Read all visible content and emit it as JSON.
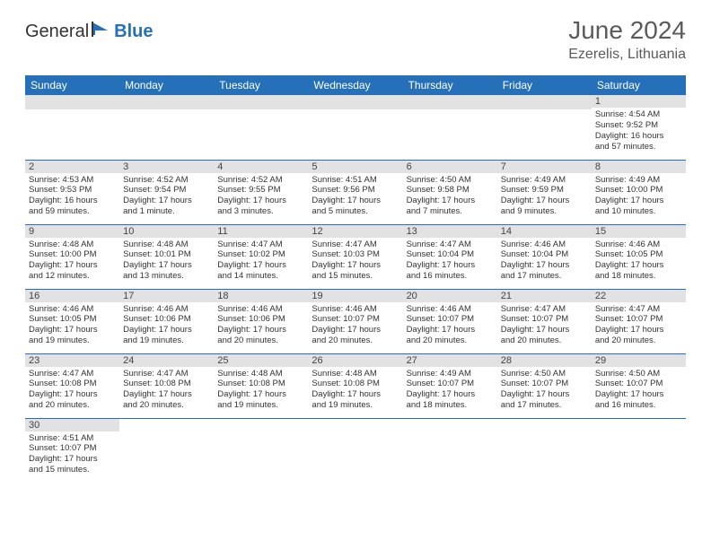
{
  "logo": {
    "part1": "General",
    "part2": "Blue"
  },
  "title": "June 2024",
  "location": "Ezerelis, Lithuania",
  "headers": [
    "Sunday",
    "Monday",
    "Tuesday",
    "Wednesday",
    "Thursday",
    "Friday",
    "Saturday"
  ],
  "colors": {
    "header_bg": "#2570b8",
    "header_fg": "#ffffff",
    "daynum_bg": "#e2e2e2",
    "border": "#2570b8"
  },
  "weeks": [
    [
      null,
      null,
      null,
      null,
      null,
      null,
      {
        "n": "1",
        "sr": "Sunrise: 4:54 AM",
        "ss": "Sunset: 9:52 PM",
        "d1": "Daylight: 16 hours",
        "d2": "and 57 minutes."
      }
    ],
    [
      {
        "n": "2",
        "sr": "Sunrise: 4:53 AM",
        "ss": "Sunset: 9:53 PM",
        "d1": "Daylight: 16 hours",
        "d2": "and 59 minutes."
      },
      {
        "n": "3",
        "sr": "Sunrise: 4:52 AM",
        "ss": "Sunset: 9:54 PM",
        "d1": "Daylight: 17 hours",
        "d2": "and 1 minute."
      },
      {
        "n": "4",
        "sr": "Sunrise: 4:52 AM",
        "ss": "Sunset: 9:55 PM",
        "d1": "Daylight: 17 hours",
        "d2": "and 3 minutes."
      },
      {
        "n": "5",
        "sr": "Sunrise: 4:51 AM",
        "ss": "Sunset: 9:56 PM",
        "d1": "Daylight: 17 hours",
        "d2": "and 5 minutes."
      },
      {
        "n": "6",
        "sr": "Sunrise: 4:50 AM",
        "ss": "Sunset: 9:58 PM",
        "d1": "Daylight: 17 hours",
        "d2": "and 7 minutes."
      },
      {
        "n": "7",
        "sr": "Sunrise: 4:49 AM",
        "ss": "Sunset: 9:59 PM",
        "d1": "Daylight: 17 hours",
        "d2": "and 9 minutes."
      },
      {
        "n": "8",
        "sr": "Sunrise: 4:49 AM",
        "ss": "Sunset: 10:00 PM",
        "d1": "Daylight: 17 hours",
        "d2": "and 10 minutes."
      }
    ],
    [
      {
        "n": "9",
        "sr": "Sunrise: 4:48 AM",
        "ss": "Sunset: 10:00 PM",
        "d1": "Daylight: 17 hours",
        "d2": "and 12 minutes."
      },
      {
        "n": "10",
        "sr": "Sunrise: 4:48 AM",
        "ss": "Sunset: 10:01 PM",
        "d1": "Daylight: 17 hours",
        "d2": "and 13 minutes."
      },
      {
        "n": "11",
        "sr": "Sunrise: 4:47 AM",
        "ss": "Sunset: 10:02 PM",
        "d1": "Daylight: 17 hours",
        "d2": "and 14 minutes."
      },
      {
        "n": "12",
        "sr": "Sunrise: 4:47 AM",
        "ss": "Sunset: 10:03 PM",
        "d1": "Daylight: 17 hours",
        "d2": "and 15 minutes."
      },
      {
        "n": "13",
        "sr": "Sunrise: 4:47 AM",
        "ss": "Sunset: 10:04 PM",
        "d1": "Daylight: 17 hours",
        "d2": "and 16 minutes."
      },
      {
        "n": "14",
        "sr": "Sunrise: 4:46 AM",
        "ss": "Sunset: 10:04 PM",
        "d1": "Daylight: 17 hours",
        "d2": "and 17 minutes."
      },
      {
        "n": "15",
        "sr": "Sunrise: 4:46 AM",
        "ss": "Sunset: 10:05 PM",
        "d1": "Daylight: 17 hours",
        "d2": "and 18 minutes."
      }
    ],
    [
      {
        "n": "16",
        "sr": "Sunrise: 4:46 AM",
        "ss": "Sunset: 10:05 PM",
        "d1": "Daylight: 17 hours",
        "d2": "and 19 minutes."
      },
      {
        "n": "17",
        "sr": "Sunrise: 4:46 AM",
        "ss": "Sunset: 10:06 PM",
        "d1": "Daylight: 17 hours",
        "d2": "and 19 minutes."
      },
      {
        "n": "18",
        "sr": "Sunrise: 4:46 AM",
        "ss": "Sunset: 10:06 PM",
        "d1": "Daylight: 17 hours",
        "d2": "and 20 minutes."
      },
      {
        "n": "19",
        "sr": "Sunrise: 4:46 AM",
        "ss": "Sunset: 10:07 PM",
        "d1": "Daylight: 17 hours",
        "d2": "and 20 minutes."
      },
      {
        "n": "20",
        "sr": "Sunrise: 4:46 AM",
        "ss": "Sunset: 10:07 PM",
        "d1": "Daylight: 17 hours",
        "d2": "and 20 minutes."
      },
      {
        "n": "21",
        "sr": "Sunrise: 4:47 AM",
        "ss": "Sunset: 10:07 PM",
        "d1": "Daylight: 17 hours",
        "d2": "and 20 minutes."
      },
      {
        "n": "22",
        "sr": "Sunrise: 4:47 AM",
        "ss": "Sunset: 10:07 PM",
        "d1": "Daylight: 17 hours",
        "d2": "and 20 minutes."
      }
    ],
    [
      {
        "n": "23",
        "sr": "Sunrise: 4:47 AM",
        "ss": "Sunset: 10:08 PM",
        "d1": "Daylight: 17 hours",
        "d2": "and 20 minutes."
      },
      {
        "n": "24",
        "sr": "Sunrise: 4:47 AM",
        "ss": "Sunset: 10:08 PM",
        "d1": "Daylight: 17 hours",
        "d2": "and 20 minutes."
      },
      {
        "n": "25",
        "sr": "Sunrise: 4:48 AM",
        "ss": "Sunset: 10:08 PM",
        "d1": "Daylight: 17 hours",
        "d2": "and 19 minutes."
      },
      {
        "n": "26",
        "sr": "Sunrise: 4:48 AM",
        "ss": "Sunset: 10:08 PM",
        "d1": "Daylight: 17 hours",
        "d2": "and 19 minutes."
      },
      {
        "n": "27",
        "sr": "Sunrise: 4:49 AM",
        "ss": "Sunset: 10:07 PM",
        "d1": "Daylight: 17 hours",
        "d2": "and 18 minutes."
      },
      {
        "n": "28",
        "sr": "Sunrise: 4:50 AM",
        "ss": "Sunset: 10:07 PM",
        "d1": "Daylight: 17 hours",
        "d2": "and 17 minutes."
      },
      {
        "n": "29",
        "sr": "Sunrise: 4:50 AM",
        "ss": "Sunset: 10:07 PM",
        "d1": "Daylight: 17 hours",
        "d2": "and 16 minutes."
      }
    ],
    [
      {
        "n": "30",
        "sr": "Sunrise: 4:51 AM",
        "ss": "Sunset: 10:07 PM",
        "d1": "Daylight: 17 hours",
        "d2": "and 15 minutes."
      },
      null,
      null,
      null,
      null,
      null,
      null
    ]
  ]
}
